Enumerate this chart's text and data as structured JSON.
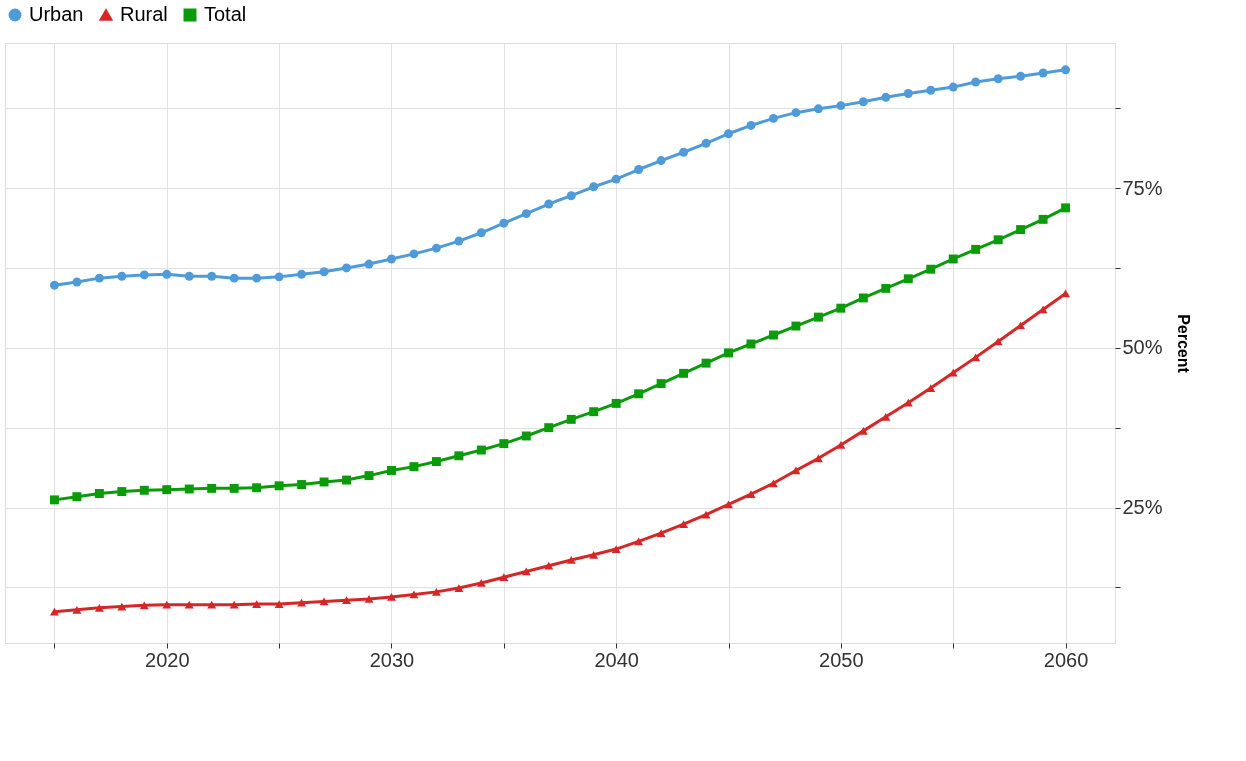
{
  "chart_data": {
    "type": "line",
    "ylabel": "Percent",
    "legend": "top",
    "grid": true,
    "x": [
      2015,
      2016,
      2017,
      2018,
      2019,
      2020,
      2021,
      2022,
      2023,
      2024,
      2025,
      2026,
      2027,
      2028,
      2029,
      2030,
      2031,
      2032,
      2033,
      2034,
      2035,
      2036,
      2037,
      2038,
      2039,
      2040,
      2041,
      2042,
      2043,
      2044,
      2045,
      2046,
      2047,
      2048,
      2049,
      2050,
      2051,
      2052,
      2053,
      2054,
      2055,
      2056,
      2057,
      2058,
      2059,
      2060
    ],
    "xlim": [
      2012.8,
      2062.2
    ],
    "xticks": [
      {
        "value": 2015,
        "label": null
      },
      2020,
      {
        "value": 2025,
        "label": null
      },
      2030,
      {
        "value": 2035,
        "label": null
      },
      2040,
      {
        "value": 2045,
        "label": null
      },
      2050,
      {
        "value": 2055,
        "label": null
      },
      2060
    ],
    "ylim": [
      3.8,
      97.7
    ],
    "yticks": [
      {
        "value": 12.5,
        "label": null
      },
      {
        "value": 25,
        "label": "25%"
      },
      {
        "value": 37.5,
        "label": null
      },
      {
        "value": 50,
        "label": "50%"
      },
      {
        "value": 62.5,
        "label": null
      },
      {
        "value": 75,
        "label": "75%"
      },
      {
        "value": 87.5,
        "label": null
      }
    ],
    "series": [
      {
        "name": "Urban",
        "color": "#4f9bd9",
        "marker": "circle",
        "values": [
          59.8,
          60.3,
          60.9,
          61.2,
          61.4,
          61.5,
          61.2,
          61.2,
          60.9,
          60.9,
          61.1,
          61.5,
          61.9,
          62.5,
          63.1,
          63.9,
          64.7,
          65.6,
          66.7,
          68.0,
          69.5,
          71.0,
          72.5,
          73.8,
          75.2,
          76.4,
          77.9,
          79.3,
          80.6,
          82.0,
          83.5,
          84.8,
          85.9,
          86.8,
          87.4,
          87.9,
          88.5,
          89.2,
          89.8,
          90.3,
          90.8,
          91.6,
          92.1,
          92.5,
          93.0,
          93.5
        ]
      },
      {
        "name": "Rural",
        "color": "#d62728",
        "marker": "triangle",
        "values": [
          8.7,
          9.0,
          9.3,
          9.5,
          9.7,
          9.8,
          9.8,
          9.8,
          9.8,
          9.9,
          9.9,
          10.1,
          10.3,
          10.5,
          10.7,
          11.0,
          11.4,
          11.8,
          12.4,
          13.2,
          14.1,
          15.0,
          15.9,
          16.8,
          17.6,
          18.5,
          19.7,
          21.0,
          22.4,
          23.9,
          25.5,
          27.1,
          28.8,
          30.8,
          32.7,
          34.8,
          37.0,
          39.2,
          41.4,
          43.7,
          46.1,
          48.5,
          51.0,
          53.5,
          56.0,
          58.5
        ]
      },
      {
        "name": "Total",
        "color": "#0a9a0a",
        "marker": "square",
        "values": [
          26.2,
          26.7,
          27.2,
          27.5,
          27.7,
          27.8,
          27.9,
          28.0,
          28.0,
          28.1,
          28.4,
          28.6,
          29.0,
          29.3,
          30.0,
          30.8,
          31.4,
          32.2,
          33.1,
          34.0,
          35.0,
          36.2,
          37.5,
          38.8,
          40.0,
          41.3,
          42.8,
          44.4,
          46.0,
          47.6,
          49.2,
          50.6,
          52.0,
          53.4,
          54.8,
          56.2,
          57.8,
          59.3,
          60.8,
          62.3,
          63.9,
          65.4,
          66.9,
          68.5,
          70.1,
          71.9
        ]
      }
    ]
  }
}
